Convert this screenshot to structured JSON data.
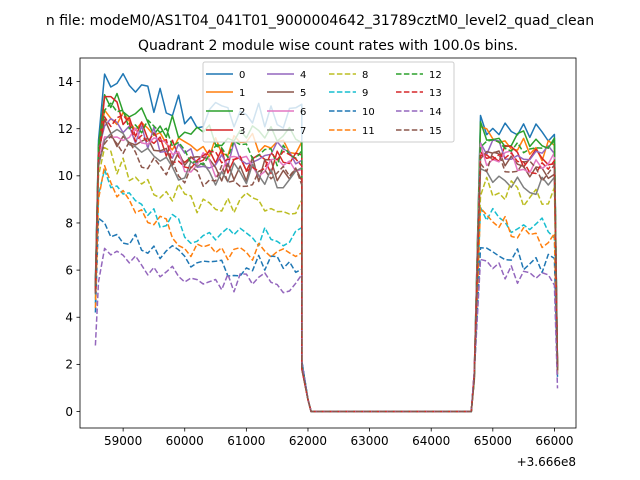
{
  "chart_data": {
    "type": "line",
    "suptitle": "n file: modeM0/AS1T04_041T01_9000004642_31789cztM0_level2_quad_clean",
    "title": "Quadrant 2 module wise count rates with 100.0s bins.",
    "xlabel": "",
    "ylabel": "",
    "offset_text": "+3.666e8",
    "xlim": [
      58300,
      66350
    ],
    "ylim": [
      -0.7,
      15.0
    ],
    "x_ticks": [
      59000,
      60000,
      61000,
      62000,
      63000,
      64000,
      65000,
      66000
    ],
    "y_ticks": [
      0,
      2,
      4,
      6,
      8,
      10,
      12,
      14
    ],
    "grid": false,
    "legend": {
      "placement": "top-center",
      "columns": 4
    },
    "segments": [
      {
        "x_start": 58550,
        "x_end": 61850,
        "post": [
          2.0,
          0.5
        ]
      },
      {
        "x_start": 64750,
        "x_end": 66050,
        "pre": [
          1.5
        ]
      }
    ],
    "gap": {
      "x_start": 62050,
      "x_end": 64650,
      "value": 0
    },
    "series": [
      {
        "name": "0",
        "color": "#1f77b4",
        "dash": "solid",
        "ramp": [
          5.5,
          11.5
        ],
        "level": 12.6,
        "peak": 14.2,
        "level2": 11.8,
        "peak2": 12.3
      },
      {
        "name": "1",
        "color": "#ff7f0e",
        "dash": "solid",
        "ramp": [
          5.2,
          11.0
        ],
        "level": 11.3,
        "peak": 12.7,
        "level2": 11.1,
        "peak2": 11.8
      },
      {
        "name": "2",
        "color": "#2ca02c",
        "dash": "solid",
        "ramp": [
          5.4,
          11.3
        ],
        "level": 11.6,
        "peak": 13.5,
        "level2": 11.5,
        "peak2": 11.9
      },
      {
        "name": "3",
        "color": "#d62728",
        "dash": "solid",
        "ramp": [
          5.2,
          10.8
        ],
        "level": 10.6,
        "peak": 13.2,
        "level2": 10.8,
        "peak2": 11.2
      },
      {
        "name": "4",
        "color": "#9467bd",
        "dash": "solid",
        "ramp": [
          5.3,
          11.1
        ],
        "level": 10.9,
        "peak": 12.5,
        "level2": 10.9,
        "peak2": 11.4
      },
      {
        "name": "5",
        "color": "#8c564b",
        "dash": "solid",
        "ramp": [
          5.2,
          10.9
        ],
        "level": 10.3,
        "peak": 12.0,
        "level2": 10.3,
        "peak2": 10.8
      },
      {
        "name": "6",
        "color": "#e377c2",
        "dash": "solid",
        "ramp": [
          5.1,
          10.7
        ],
        "level": 10.5,
        "peak": 12.2,
        "level2": 10.5,
        "peak2": 10.9
      },
      {
        "name": "7",
        "color": "#7f7f7f",
        "dash": "solid",
        "ramp": [
          5.0,
          10.4
        ],
        "level": 10.0,
        "peak": 11.8,
        "level2": 9.6,
        "peak2": 10.2
      },
      {
        "name": "8",
        "color": "#bcbd22",
        "dash": "dashed",
        "ramp": [
          4.8,
          10.0
        ],
        "level": 8.9,
        "peak": 10.8,
        "level2": 9.1,
        "peak2": 9.6
      },
      {
        "name": "9",
        "color": "#17becf",
        "dash": "dashed",
        "ramp": [
          4.6,
          9.2
        ],
        "level": 7.4,
        "peak": 9.8,
        "level2": 7.8,
        "peak2": 8.4
      },
      {
        "name": "10",
        "color": "#1f77b4",
        "dash": "dashed",
        "ramp": [
          4.2,
          8.2
        ],
        "level": 6.2,
        "peak": 8.1,
        "level2": 6.3,
        "peak2": 6.9
      },
      {
        "name": "11",
        "color": "#ff7f0e",
        "dash": "dashed",
        "ramp": [
          4.4,
          9.0
        ],
        "level": 6.9,
        "peak": 10.2,
        "level2": 7.4,
        "peak2": 8.3
      },
      {
        "name": "12",
        "color": "#2ca02c",
        "dash": "dashed",
        "ramp": [
          5.3,
          11.2
        ],
        "level": 11.0,
        "peak": 13.0,
        "level2": 11.3,
        "peak2": 11.7
      },
      {
        "name": "13",
        "color": "#d62728",
        "dash": "dashed",
        "ramp": [
          5.1,
          10.8
        ],
        "level": 10.7,
        "peak": 12.6,
        "level2": 10.6,
        "peak2": 11.1
      },
      {
        "name": "14",
        "color": "#9467bd",
        "dash": "dashed",
        "ramp": [
          2.8,
          5.5
        ],
        "level": 5.5,
        "peak": 6.9,
        "level2": 5.6,
        "peak2": 6.1
      },
      {
        "name": "15",
        "color": "#8c564b",
        "dash": "dashed",
        "ramp": [
          5.0,
          10.6
        ],
        "level": 10.0,
        "peak": 11.5,
        "level2": 10.2,
        "peak2": 10.7
      }
    ]
  }
}
